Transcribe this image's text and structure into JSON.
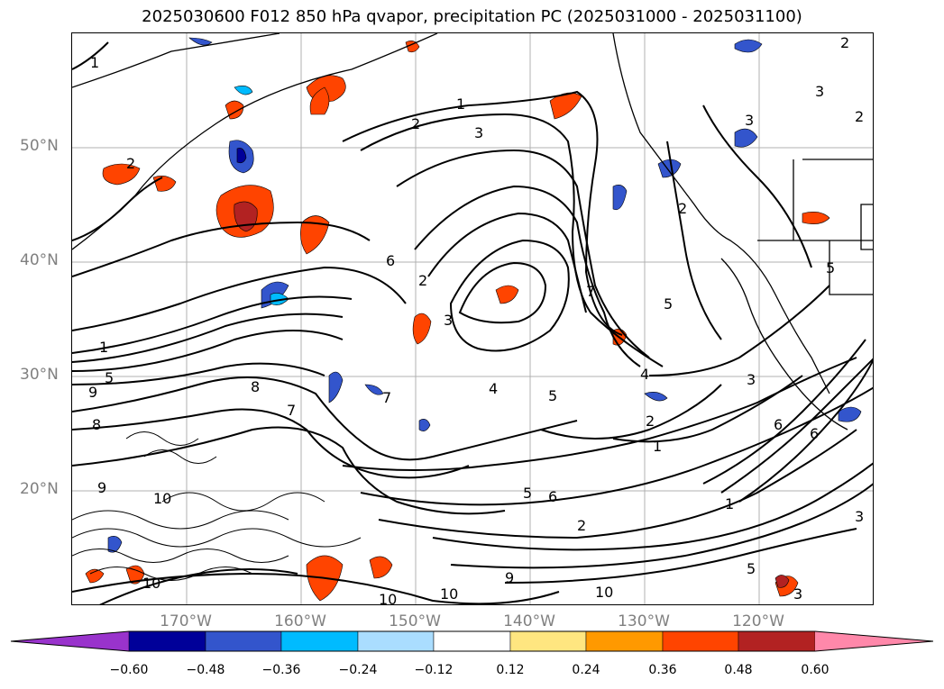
{
  "title": "2025030600 F012 850 hPa qvapor, precipitation PC (2025031000 - 2025031100)",
  "lat_labels": [
    "50°N",
    "40°N",
    "30°N",
    "20°N"
  ],
  "lon_labels": [
    "170°W",
    "160°W",
    "150°W",
    "140°W",
    "130°W",
    "120°W"
  ],
  "colorbar": {
    "tick_labels": [
      "−0.60",
      "−0.48",
      "−0.36",
      "−0.24",
      "−0.12",
      "0.12",
      "0.24",
      "0.36",
      "0.48",
      "0.60"
    ],
    "colors": [
      "#9933cc",
      "#000099",
      "#3355cc",
      "#00bbff",
      "#aaddff",
      "#ffffff",
      "#ffe680",
      "#ff9900",
      "#ff4400",
      "#b22222",
      "#ff88aa"
    ]
  },
  "contour_labels": [
    "1",
    "2",
    "3",
    "4",
    "5",
    "6",
    "7",
    "8",
    "9",
    "10"
  ],
  "colors": {
    "land_outline": "#000000",
    "grid": "#b0b0b0",
    "contour": "#000000"
  }
}
